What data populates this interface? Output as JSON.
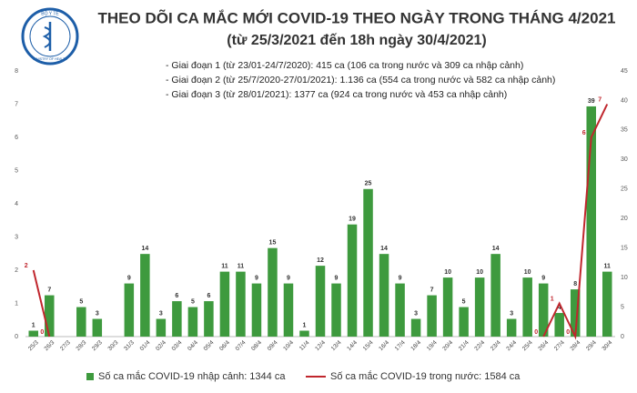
{
  "logo": {
    "top": "BỘ Y TẾ",
    "bottom": "MINISTRY OF HEALTH"
  },
  "chart_data": {
    "type": "combo",
    "title": "THEO DÕI CA MẮC MỚI COVID-19 THEO NGÀY TRONG THÁNG 4/2021",
    "subtitle": "(từ 25/3/2021 đến 18h ngày 30/4/2021)",
    "annotations": [
      "- Giai đoạn 1 (từ 23/01-24/7/2020): 415 ca (106 ca trong nước và 309 ca nhập cảnh)",
      "- Giai đoạn 2 (từ 25/7/2020-27/01/2021): 1.136 ca (554 ca trong nước và 582 ca nhập cảnh)",
      "- Giai đoạn 3 (từ 28/01/2021): 1377 ca (924 ca trong nước và 453 ca nhập cảnh)"
    ],
    "categories": [
      "25/3",
      "26/3",
      "27/3",
      "28/3",
      "29/3",
      "30/3",
      "31/3",
      "01/4",
      "02/4",
      "03/4",
      "04/4",
      "05/4",
      "06/4",
      "07/4",
      "08/4",
      "09/4",
      "10/4",
      "11/4",
      "12/4",
      "13/4",
      "14/4",
      "15/4",
      "16/4",
      "17/4",
      "18/4",
      "19/4",
      "20/4",
      "21/4",
      "22/4",
      "23/4",
      "24/4",
      "25/4",
      "26/4",
      "27/4",
      "28/4",
      "29/4",
      "30/4"
    ],
    "series": [
      {
        "name": "Số ca mắc COVID-19 nhập cảnh: 1344 ca",
        "type": "bar",
        "axis": "y2",
        "color": "#3e9a3e",
        "values": [
          1,
          7,
          null,
          5,
          3,
          null,
          9,
          14,
          3,
          6,
          5,
          6,
          11,
          11,
          9,
          15,
          9,
          1,
          12,
          9,
          19,
          25,
          14,
          9,
          3,
          7,
          10,
          5,
          10,
          14,
          3,
          10,
          9,
          4,
          8,
          39,
          11
        ]
      },
      {
        "name": "Số ca mắc COVID-19 trong nước: 1584 ca",
        "type": "line",
        "axis": "y",
        "color": "#c0262d",
        "values": [
          2,
          0,
          null,
          null,
          null,
          null,
          null,
          null,
          null,
          null,
          null,
          null,
          null,
          null,
          null,
          null,
          null,
          null,
          null,
          null,
          null,
          null,
          null,
          null,
          null,
          null,
          null,
          null,
          null,
          null,
          null,
          null,
          0,
          1,
          0,
          6,
          7
        ]
      }
    ],
    "ylim": [
      0,
      8
    ],
    "yticks": [
      0,
      1,
      2,
      3,
      4,
      5,
      6,
      7,
      8
    ],
    "y2lim": [
      0,
      45
    ],
    "y2ticks": [
      0,
      5,
      10,
      15,
      20,
      25,
      30,
      35,
      40,
      45
    ],
    "grid": false,
    "legend": "bottom"
  }
}
